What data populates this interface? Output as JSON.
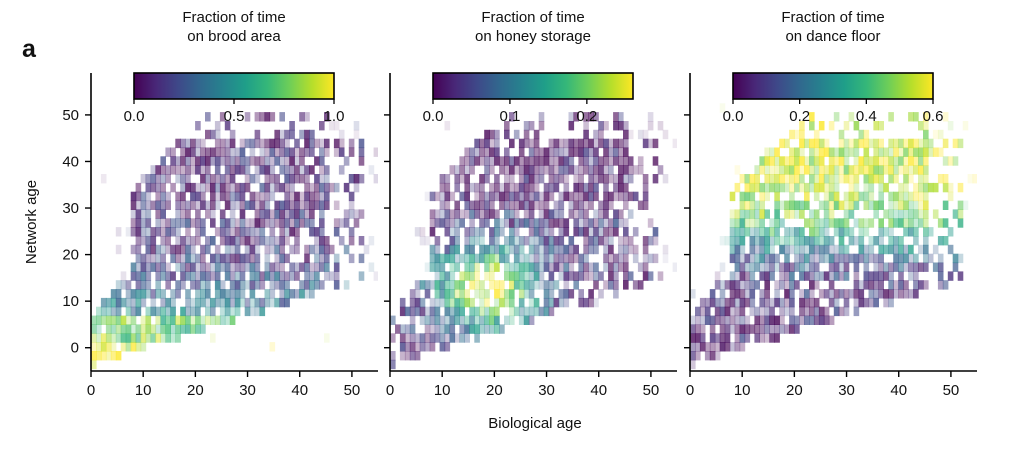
{
  "figure": {
    "panel_label": "a",
    "shared_xlabel": "Biological age",
    "shared_ylabel": "Network age"
  },
  "colorscale": [
    "#440154",
    "#482878",
    "#3e4989",
    "#31688e",
    "#26828e",
    "#1f9e89",
    "#35b779",
    "#6ece58",
    "#b5de2b",
    "#fde725"
  ],
  "chart_data": [
    {
      "type": "heatmap",
      "title": "Fraction of time\non brood area",
      "title_lines": [
        "Fraction of time",
        "on brood area"
      ],
      "colorbar": {
        "range": [
          0,
          1.0
        ],
        "ticks": [
          0.0,
          0.5,
          1.0
        ],
        "tick_labels": [
          "0.0",
          "0.5",
          "1.0"
        ]
      },
      "xlabel": "",
      "ylabel": "Network age",
      "xlim": [
        0,
        55
      ],
      "ylim": [
        -5,
        59
      ],
      "xticks": [
        0,
        10,
        20,
        30,
        40,
        50
      ],
      "yticks": [
        0,
        10,
        20,
        30,
        40,
        50
      ],
      "show_yticklabels": true,
      "grid": false,
      "pattern": "brood",
      "seed": 11
    },
    {
      "type": "heatmap",
      "title": "Fraction of time\non honey storage",
      "title_lines": [
        "Fraction of time",
        "on honey storage"
      ],
      "colorbar": {
        "range": [
          0,
          0.26
        ],
        "ticks": [
          0.0,
          0.1,
          0.2
        ],
        "tick_labels": [
          "0.0",
          "0.1",
          "0.2"
        ]
      },
      "xlabel": "Biological age",
      "ylabel": "",
      "xlim": [
        0,
        55
      ],
      "ylim": [
        -5,
        59
      ],
      "xticks": [
        0,
        10,
        20,
        30,
        40,
        50
      ],
      "yticks": [
        0,
        10,
        20,
        30,
        40,
        50
      ],
      "show_yticklabels": false,
      "grid": false,
      "pattern": "honey",
      "seed": 29
    },
    {
      "type": "heatmap",
      "title": "Fraction of time\non dance floor",
      "title_lines": [
        "Fraction of time",
        "on dance floor"
      ],
      "colorbar": {
        "range": [
          0,
          0.6
        ],
        "ticks": [
          0.0,
          0.2,
          0.4,
          0.6
        ],
        "tick_labels": [
          "0.0",
          "0.2",
          "0.4",
          "0.6"
        ]
      },
      "xlabel": "",
      "ylabel": "",
      "xlim": [
        0,
        55
      ],
      "ylim": [
        -5,
        59
      ],
      "xticks": [
        0,
        10,
        20,
        30,
        40,
        50
      ],
      "yticks": [
        0,
        10,
        20,
        30,
        40,
        50
      ],
      "show_yticklabels": false,
      "grid": false,
      "pattern": "dance",
      "seed": 47
    }
  ]
}
